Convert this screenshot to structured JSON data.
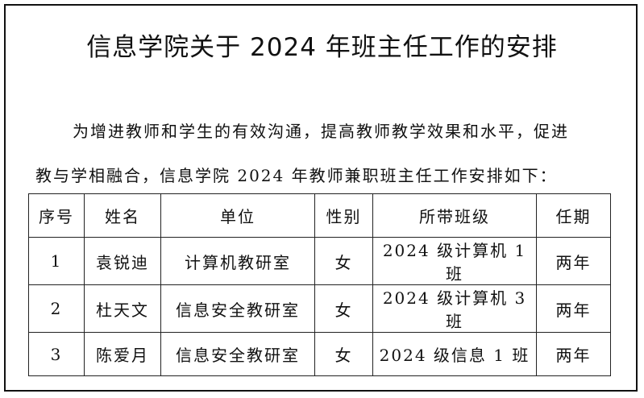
{
  "document": {
    "title": "信息学院关于 2024 年班主任工作的安排",
    "paragraph_line1": "为增进教师和学生的有效沟通，提高教师教学效果和水平，促进",
    "paragraph_line2": "教与学相融合，信息学院 2024 年教师兼职班主任工作安排如下："
  },
  "table": {
    "headers": [
      "序号",
      "姓名",
      "单位",
      "性别",
      "所带班级",
      "任期"
    ],
    "rows": [
      [
        "1",
        "袁锐迪",
        "计算机教研室",
        "女",
        "2024 级计算机 1 班",
        "两年"
      ],
      [
        "2",
        "杜天文",
        "信息安全教研室",
        "女",
        "2024 级计算机 3 班",
        "两年"
      ],
      [
        "3",
        "陈爱月",
        "信息安全教研室",
        "女",
        "2024 级信息 1 班",
        "两年"
      ]
    ]
  }
}
